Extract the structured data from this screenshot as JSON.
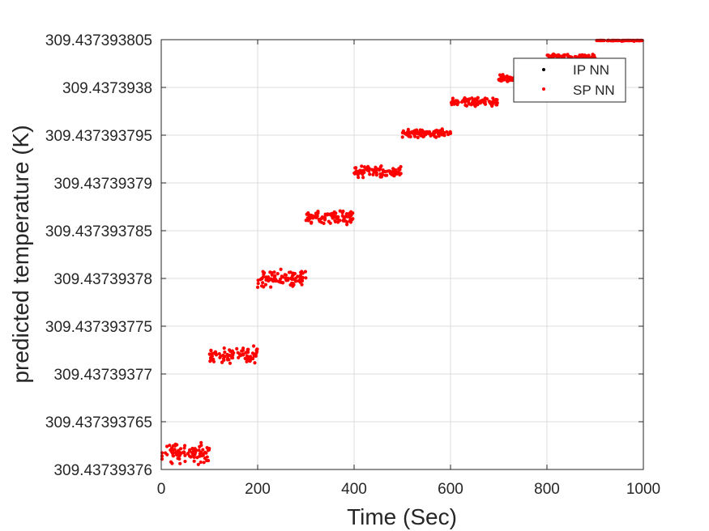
{
  "chart_data": {
    "type": "scatter",
    "title": "",
    "xlabel": "Time (Sec)",
    "ylabel": "predicted temperature (K)",
    "xlim": [
      0,
      1000
    ],
    "ylim": [
      309.43739376,
      309.437393805
    ],
    "xticks": [
      0,
      200,
      400,
      600,
      800,
      1000
    ],
    "xtick_labels": [
      "0",
      "200",
      "400",
      "600",
      "800",
      "1000"
    ],
    "yticks": [
      309.43739376,
      309.437393765,
      309.43739377,
      309.437393775,
      309.43739378,
      309.437393785,
      309.43739379,
      309.437393795,
      309.4373938,
      309.437393805
    ],
    "ytick_labels": [
      "309.43739376",
      "309.437393765",
      "309.43739377",
      "309.437393775",
      "309.43739378",
      "309.437393785",
      "309.43739379",
      "309.437393795",
      "309.4373938",
      "309.437393805"
    ],
    "grid": true,
    "legend_position": "top-right",
    "series": [
      {
        "name": "IP NN",
        "color": "#000000",
        "marker": "dot"
      },
      {
        "name": "SP NN",
        "color": "#ff0000",
        "marker": "dot"
      }
    ],
    "segments": [
      {
        "x_range": [
          0,
          100
        ],
        "y_center": 309.4373937617,
        "y_spread": 1.4e-09
      },
      {
        "x_range": [
          100,
          200
        ],
        "y_center": 309.437393772,
        "y_spread": 1e-09
      },
      {
        "x_range": [
          200,
          300
        ],
        "y_center": 309.43739378,
        "y_spread": 1e-09
      },
      {
        "x_range": [
          300,
          400
        ],
        "y_center": 309.4373937864,
        "y_spread": 8e-10
      },
      {
        "x_range": [
          400,
          500
        ],
        "y_center": 309.4373937912,
        "y_spread": 7e-10
      },
      {
        "x_range": [
          500,
          600
        ],
        "y_center": 309.4373937952,
        "y_spread": 5e-10
      },
      {
        "x_range": [
          600,
          700
        ],
        "y_center": 309.4373937985,
        "y_spread": 5e-10
      },
      {
        "x_range": [
          700,
          800
        ],
        "y_center": 309.437393801,
        "y_spread": 4e-10
      },
      {
        "x_range": [
          800,
          900
        ],
        "y_center": 309.4373938032,
        "y_spread": 3e-10
      },
      {
        "x_range": [
          900,
          1000
        ],
        "y_center": 309.437393805,
        "y_spread": 2e-10
      }
    ]
  }
}
